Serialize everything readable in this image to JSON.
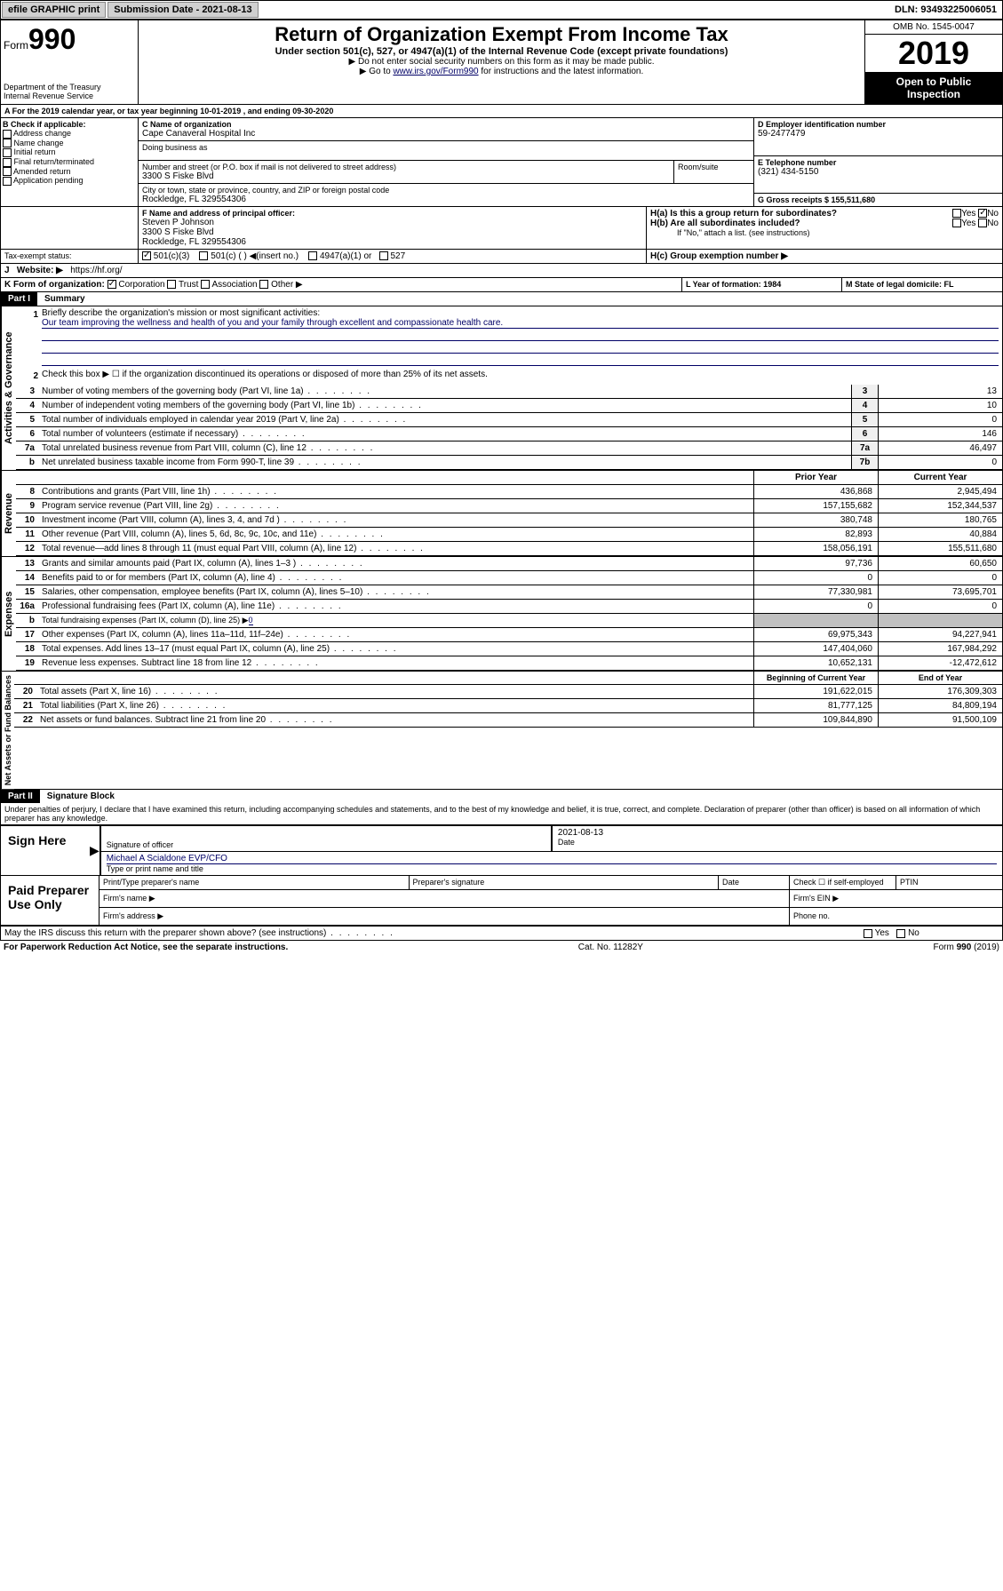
{
  "topbar": {
    "efile": "efile GRAPHIC print",
    "submission_label": "Submission Date - 2021-08-13",
    "dln": "DLN: 93493225006051"
  },
  "header": {
    "form_prefix": "Form",
    "form_num": "990",
    "title": "Return of Organization Exempt From Income Tax",
    "subtitle": "Under section 501(c), 527, or 4947(a)(1) of the Internal Revenue Code (except private foundations)",
    "instr1": "▶ Do not enter social security numbers on this form as it may be made public.",
    "instr2_pre": "▶ Go to ",
    "instr2_link": "www.irs.gov/Form990",
    "instr2_post": " for instructions and the latest information.",
    "dept": "Department of the Treasury",
    "irs": "Internal Revenue Service",
    "omb": "OMB No. 1545-0047",
    "year": "2019",
    "open": "Open to Public Inspection"
  },
  "sectionA": {
    "text": "For the 2019 calendar year, or tax year beginning 10-01-2019    , and ending 09-30-2020"
  },
  "sectionB": {
    "label": "B Check if applicable:",
    "items": [
      "Address change",
      "Name change",
      "Initial return",
      "Final return/terminated",
      "Amended return",
      "Application pending"
    ]
  },
  "sectionC": {
    "name_label": "C Name of organization",
    "name": "Cape Canaveral Hospital Inc",
    "dba_label": "Doing business as",
    "street_label": "Number and street (or P.O. box if mail is not delivered to street address)",
    "street": "3300 S Fiske Blvd",
    "room_label": "Room/suite",
    "city_label": "City or town, state or province, country, and ZIP or foreign postal code",
    "city": "Rockledge, FL  329554306"
  },
  "sectionD": {
    "label": "D Employer identification number",
    "value": "59-2477479"
  },
  "sectionE": {
    "label": "E Telephone number",
    "value": "(321) 434-5150"
  },
  "sectionG": {
    "label": "G Gross receipts $ 155,511,680"
  },
  "sectionF": {
    "label": "F  Name and address of principal officer:",
    "name": "Steven P Johnson",
    "addr1": "3300 S Fiske Blvd",
    "addr2": "Rockledge, FL  329554306"
  },
  "sectionH": {
    "a": "H(a)  Is this a group return for subordinates?",
    "b": "H(b)  Are all subordinates included?",
    "b_note": "If \"No,\" attach a list. (see instructions)",
    "c": "H(c)  Group exemption number ▶",
    "yes": "Yes",
    "no": "No"
  },
  "taxexempt": {
    "label": "Tax-exempt status:",
    "opt1": "501(c)(3)",
    "opt2": "501(c) (  ) ◀(insert no.)",
    "opt3": "4947(a)(1) or",
    "opt4": "527"
  },
  "sectionJ": {
    "label": "J",
    "website_label": "Website: ▶",
    "website": "https://hf.org/"
  },
  "sectionK": {
    "label": "K Form of organization:",
    "corp": "Corporation",
    "trust": "Trust",
    "assoc": "Association",
    "other": "Other ▶"
  },
  "sectionL": {
    "label": "L Year of formation: 1984"
  },
  "sectionM": {
    "label": "M State of legal domicile: FL"
  },
  "part1": {
    "header": "Part I",
    "title": "Summary",
    "q1_label": "1",
    "q1": "Briefly describe the organization's mission or most significant activities:",
    "q1_answer": "Our team improving the wellness and health of you and your family through excellent and compassionate health care.",
    "q2": "Check this box ▶ ☐  if the organization discontinued its operations or disposed of more than 25% of its net assets.",
    "lines_gov": [
      {
        "n": "3",
        "d": "Number of voting members of the governing body (Part VI, line 1a)",
        "box": "3",
        "v": "13"
      },
      {
        "n": "4",
        "d": "Number of independent voting members of the governing body (Part VI, line 1b)",
        "box": "4",
        "v": "10"
      },
      {
        "n": "5",
        "d": "Total number of individuals employed in calendar year 2019 (Part V, line 2a)",
        "box": "5",
        "v": "0"
      },
      {
        "n": "6",
        "d": "Total number of volunteers (estimate if necessary)",
        "box": "6",
        "v": "146"
      },
      {
        "n": "7a",
        "d": "Total unrelated business revenue from Part VIII, column (C), line 12",
        "box": "7a",
        "v": "46,497"
      },
      {
        "n": "b",
        "d": "Net unrelated business taxable income from Form 990-T, line 39",
        "box": "7b",
        "v": "0"
      }
    ],
    "col_prior": "Prior Year",
    "col_current": "Current Year",
    "rev": [
      {
        "n": "8",
        "d": "Contributions and grants (Part VIII, line 1h)",
        "p": "436,868",
        "c": "2,945,494"
      },
      {
        "n": "9",
        "d": "Program service revenue (Part VIII, line 2g)",
        "p": "157,155,682",
        "c": "152,344,537"
      },
      {
        "n": "10",
        "d": "Investment income (Part VIII, column (A), lines 3, 4, and 7d )",
        "p": "380,748",
        "c": "180,765"
      },
      {
        "n": "11",
        "d": "Other revenue (Part VIII, column (A), lines 5, 6d, 8c, 9c, 10c, and 11e)",
        "p": "82,893",
        "c": "40,884"
      },
      {
        "n": "12",
        "d": "Total revenue—add lines 8 through 11 (must equal Part VIII, column (A), line 12)",
        "p": "158,056,191",
        "c": "155,511,680"
      }
    ],
    "exp": [
      {
        "n": "13",
        "d": "Grants and similar amounts paid (Part IX, column (A), lines 1–3 )",
        "p": "97,736",
        "c": "60,650"
      },
      {
        "n": "14",
        "d": "Benefits paid to or for members (Part IX, column (A), line 4)",
        "p": "0",
        "c": "0"
      },
      {
        "n": "15",
        "d": "Salaries, other compensation, employee benefits (Part IX, column (A), lines 5–10)",
        "p": "77,330,981",
        "c": "73,695,701"
      },
      {
        "n": "16a",
        "d": "Professional fundraising fees (Part IX, column (A), line 11e)",
        "p": "0",
        "c": "0"
      }
    ],
    "exp_b": {
      "n": "b",
      "d": "Total fundraising expenses (Part IX, column (D), line 25) ▶",
      "v": "0"
    },
    "exp2": [
      {
        "n": "17",
        "d": "Other expenses (Part IX, column (A), lines 11a–11d, 11f–24e)",
        "p": "69,975,343",
        "c": "94,227,941"
      },
      {
        "n": "18",
        "d": "Total expenses. Add lines 13–17 (must equal Part IX, column (A), line 25)",
        "p": "147,404,060",
        "c": "167,984,292"
      },
      {
        "n": "19",
        "d": "Revenue less expenses. Subtract line 18 from line 12",
        "p": "10,652,131",
        "c": "-12,472,612"
      }
    ],
    "col_begin": "Beginning of Current Year",
    "col_end": "End of Year",
    "net": [
      {
        "n": "20",
        "d": "Total assets (Part X, line 16)",
        "p": "191,622,015",
        "c": "176,309,303"
      },
      {
        "n": "21",
        "d": "Total liabilities (Part X, line 26)",
        "p": "81,777,125",
        "c": "84,809,194"
      },
      {
        "n": "22",
        "d": "Net assets or fund balances. Subtract line 21 from line 20",
        "p": "109,844,890",
        "c": "91,500,109"
      }
    ],
    "vlabels": {
      "gov": "Activities & Governance",
      "rev": "Revenue",
      "exp": "Expenses",
      "net": "Net Assets or Fund Balances"
    }
  },
  "part2": {
    "header": "Part II",
    "title": "Signature Block",
    "perjury": "Under penalties of perjury, I declare that I have examined this return, including accompanying schedules and statements, and to the best of my knowledge and belief, it is true, correct, and complete. Declaration of preparer (other than officer) is based on all information of which preparer has any knowledge.",
    "sign_here": "Sign Here",
    "sig_officer": "Signature of officer",
    "sig_date": "2021-08-13",
    "date_label": "Date",
    "officer_name": "Michael A Scialdone EVP/CFO",
    "type_name": "Type or print name and title",
    "paid": "Paid Preparer Use Only",
    "prep_name": "Print/Type preparer's name",
    "prep_sig": "Preparer's signature",
    "prep_date": "Date",
    "check_self": "Check ☐ if self-employed",
    "ptin": "PTIN",
    "firm_name": "Firm's name   ▶",
    "firm_ein": "Firm's EIN ▶",
    "firm_addr": "Firm's address ▶",
    "phone": "Phone no.",
    "discuss": "May the IRS discuss this return with the preparer shown above? (see instructions)"
  },
  "footer": {
    "paperwork": "For Paperwork Reduction Act Notice, see the separate instructions.",
    "cat": "Cat. No. 11282Y",
    "form": "Form 990 (2019)"
  }
}
